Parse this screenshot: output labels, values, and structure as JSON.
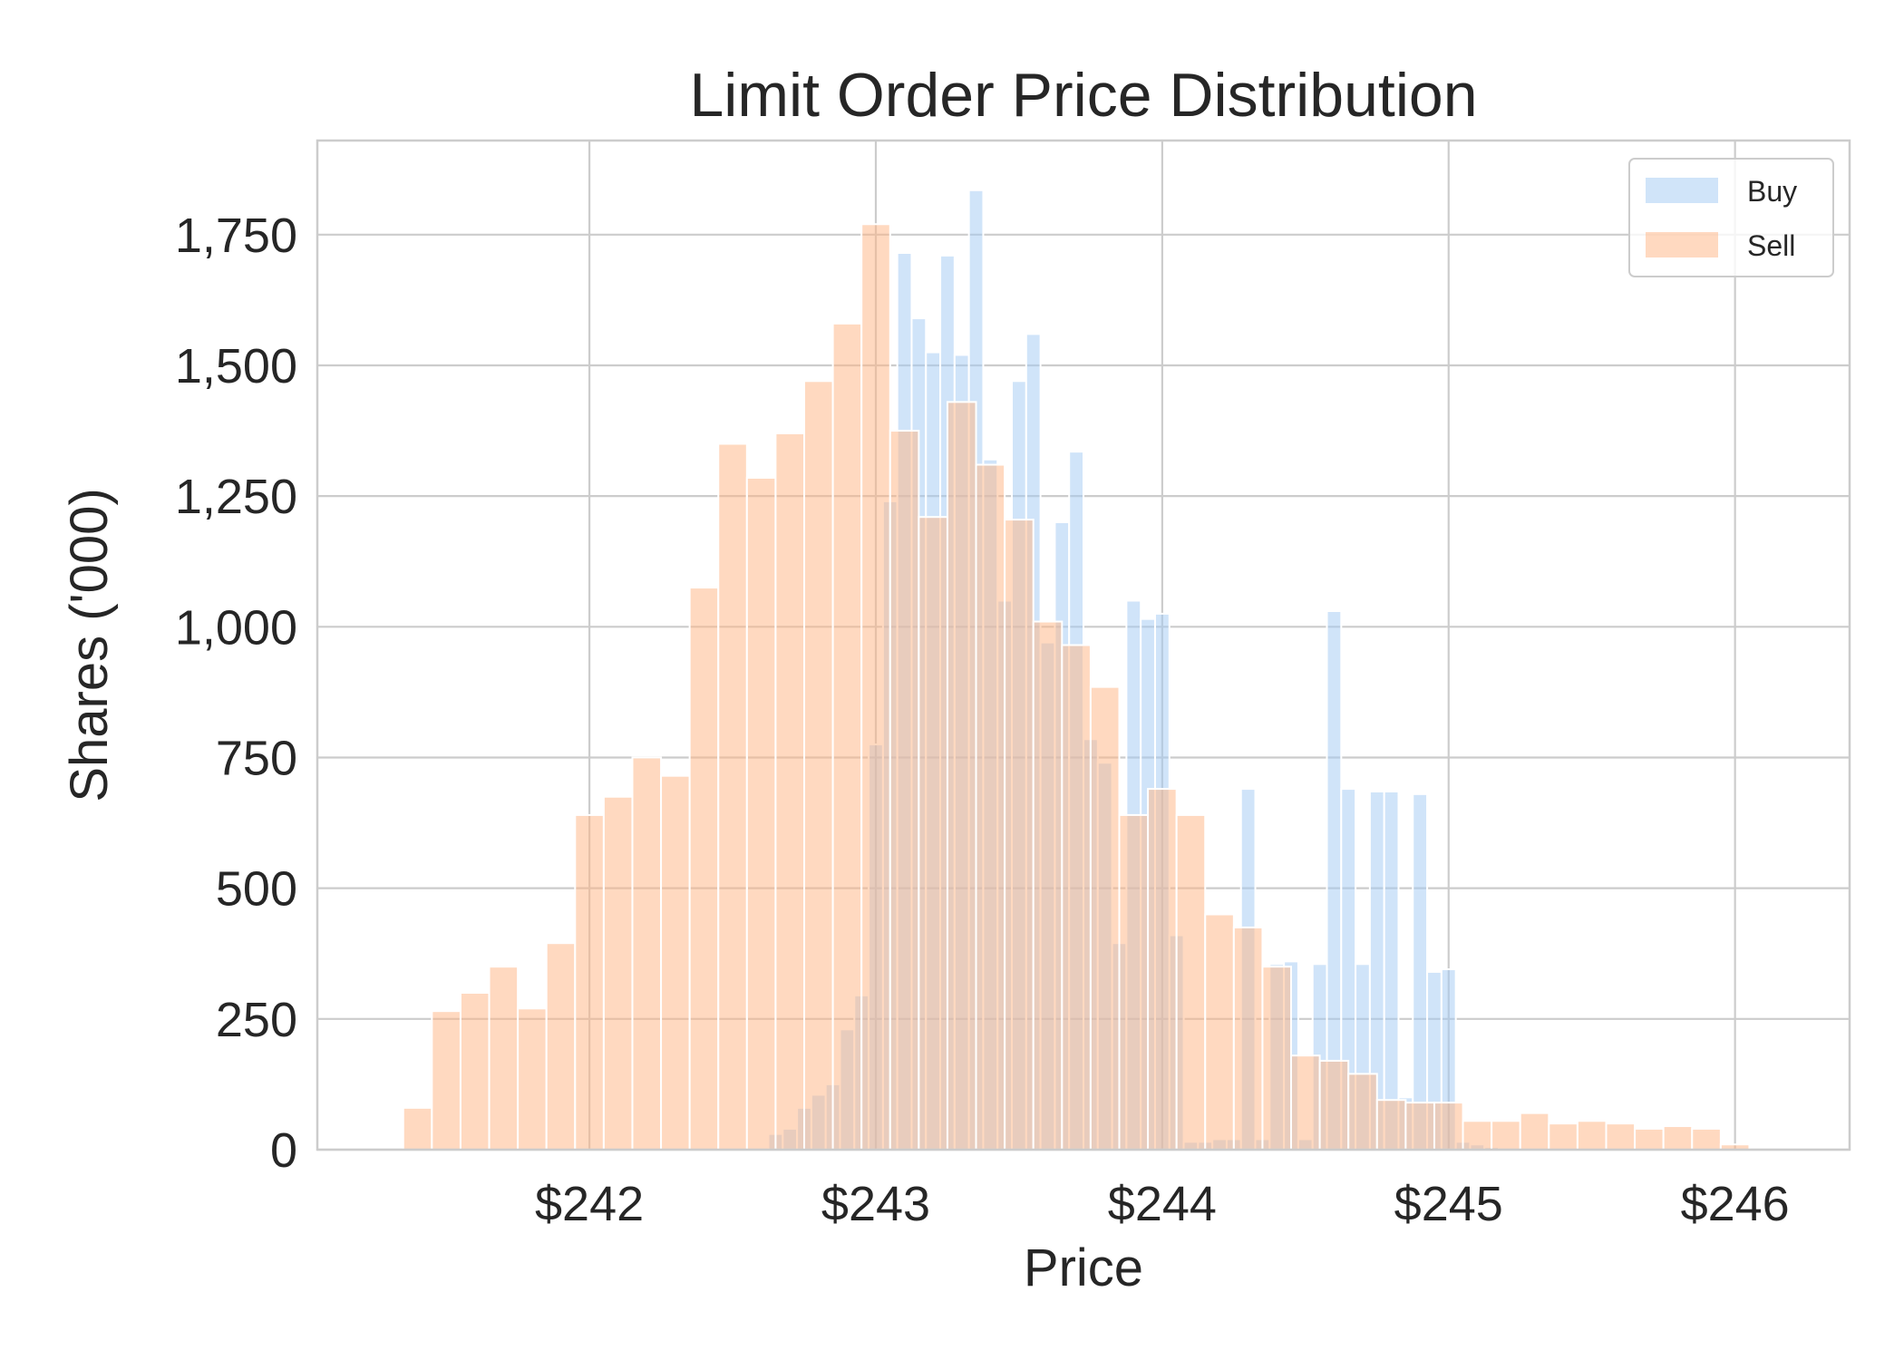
{
  "chart_data": {
    "type": "bar",
    "title": "Limit Order Price Distribution",
    "xlabel": "Price",
    "ylabel": "Shares ('000)",
    "xlim": [
      241.05,
      246.4
    ],
    "ylim": [
      0,
      1930
    ],
    "x_ticks": [
      242,
      243,
      244,
      245,
      246
    ],
    "x_tick_labels": [
      "$242",
      "$243",
      "$244",
      "$245",
      "$246"
    ],
    "y_ticks": [
      0,
      250,
      500,
      750,
      1000,
      1250,
      1500,
      1750
    ],
    "y_tick_labels": [
      "0",
      "250",
      "500",
      "750",
      "1,000",
      "1,250",
      "1,500",
      "1,750"
    ],
    "grid": true,
    "legend_position": "top-right",
    "series": [
      {
        "name": "Buy",
        "color": "#a1c9f4",
        "opacity": 0.5,
        "bin_width": 0.05,
        "x": [
          242.65,
          242.7,
          242.75,
          242.8,
          242.85,
          242.9,
          242.95,
          243.0,
          243.05,
          243.1,
          243.15,
          243.2,
          243.25,
          243.3,
          243.35,
          243.4,
          243.45,
          243.5,
          243.55,
          243.6,
          243.65,
          243.7,
          243.75,
          243.8,
          243.85,
          243.9,
          243.95,
          244.0,
          244.05,
          244.1,
          244.15,
          244.2,
          244.25,
          244.3,
          244.35,
          244.4,
          244.45,
          244.5,
          244.55,
          244.6,
          244.65,
          244.7,
          244.75,
          244.8,
          244.85,
          244.9,
          244.95,
          245.0,
          245.05,
          245.1,
          245.15
        ],
        "values": [
          30,
          40,
          80,
          105,
          125,
          230,
          295,
          775,
          1240,
          1715,
          1590,
          1525,
          1710,
          1520,
          1835,
          1320,
          1050,
          1470,
          1560,
          970,
          1200,
          1335,
          785,
          740,
          395,
          1050,
          1015,
          1025,
          410,
          15,
          15,
          20,
          20,
          690,
          20,
          355,
          360,
          20,
          355,
          1030,
          690,
          355,
          685,
          685,
          100,
          680,
          340,
          345,
          15,
          10,
          5
        ]
      },
      {
        "name": "Sell",
        "color": "#ffb482",
        "opacity": 0.5,
        "bin_width": 0.1,
        "x": [
          241.4,
          241.5,
          241.6,
          241.7,
          241.8,
          241.9,
          242.0,
          242.1,
          242.2,
          242.3,
          242.4,
          242.5,
          242.6,
          242.7,
          242.8,
          242.9,
          243.0,
          243.1,
          243.2,
          243.3,
          243.4,
          243.5,
          243.6,
          243.7,
          243.8,
          243.9,
          244.0,
          244.1,
          244.2,
          244.3,
          244.4,
          244.5,
          244.6,
          244.7,
          244.8,
          244.9,
          245.0,
          245.1,
          245.2,
          245.3,
          245.4,
          245.5,
          245.6,
          245.7,
          245.8,
          245.9,
          246.0
        ],
        "values": [
          80,
          265,
          300,
          350,
          270,
          395,
          640,
          675,
          750,
          715,
          1075,
          1350,
          1285,
          1370,
          1470,
          1580,
          1770,
          1375,
          1210,
          1430,
          1310,
          1205,
          1010,
          965,
          885,
          640,
          690,
          640,
          450,
          425,
          350,
          180,
          170,
          145,
          95,
          90,
          90,
          55,
          55,
          70,
          50,
          55,
          50,
          40,
          45,
          40,
          10
        ]
      }
    ]
  }
}
